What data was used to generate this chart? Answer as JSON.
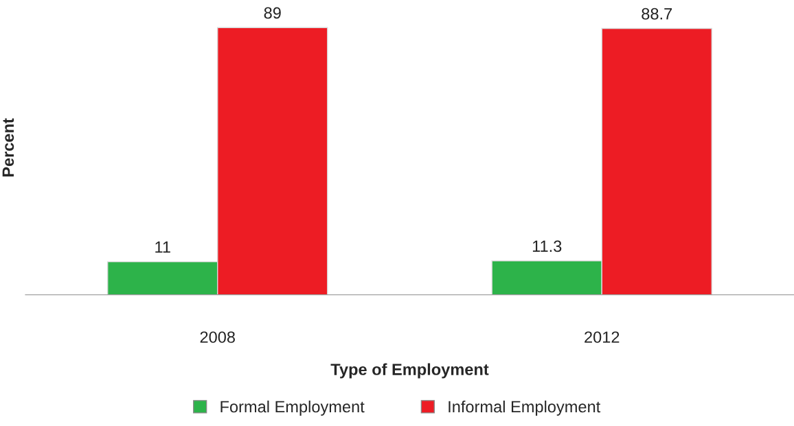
{
  "chart_data": {
    "type": "bar",
    "xlabel": "Type of Employment",
    "ylabel": "Percent",
    "categories": [
      "2008",
      "2012"
    ],
    "series": [
      {
        "name": "Formal Employment",
        "color": "#2db34a",
        "values": [
          11,
          11.3
        ]
      },
      {
        "name": "Informal Employment",
        "color": "#ed1c24",
        "values": [
          89,
          88.7
        ]
      }
    ],
    "tick_labels": "x",
    "data_labels": true,
    "legend": "bottom"
  }
}
